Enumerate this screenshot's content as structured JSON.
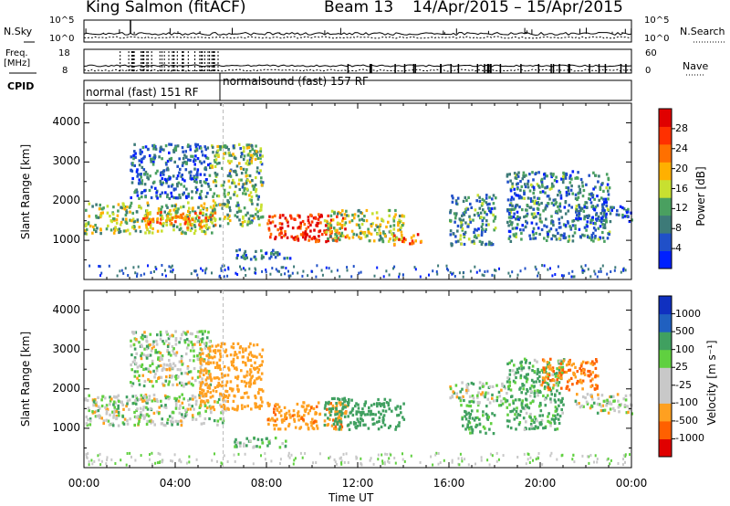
{
  "header": {
    "site": "King Salmon (fitACF)",
    "beam": "Beam 13",
    "dates": "14/Apr/2015 – 15/Apr/2015"
  },
  "aux_panels": {
    "nsky_label": "N.Sky",
    "nsearch_label": "N.Search",
    "noise_ticks": [
      "10^5",
      "10^0"
    ],
    "freq_label": "Freq.",
    "freq_unit": "[MHz]",
    "freq_ticks": [
      "18",
      "8"
    ],
    "nave_label": "Nave",
    "nave_ticks": [
      "60",
      "0"
    ],
    "cpid_label": "CPID",
    "cpid_1": "normal (fast) 151 RF",
    "cpid_2": "normalsound (fast) 157 RF"
  },
  "colors": {
    "power": [
      "#0020ff",
      "#2050c8",
      "#3d7a78",
      "#4aa060",
      "#c8e030",
      "#ffb000",
      "#ff7000",
      "#ff3000",
      "#e00000"
    ],
    "velocity": [
      "#e00000",
      "#ff6000",
      "#ffa020",
      "#c8c8c8",
      "#c8c8c8",
      "#60d040",
      "#40a060",
      "#2060c0",
      "#1030c0"
    ]
  },
  "chart_data": [
    {
      "type": "heatmap",
      "title": "Power",
      "xlabel": "Time UT",
      "ylabel": "Slant Range [km]",
      "x_ticks": [
        "00:00",
        "04:00",
        "08:00",
        "12:00",
        "16:00",
        "20:00",
        "00:00"
      ],
      "xlim": [
        0,
        24
      ],
      "y_ticks": [
        "1000",
        "2000",
        "3000",
        "4000"
      ],
      "ylim": [
        0,
        4500
      ],
      "colorbar": {
        "label": "Power [dB]",
        "ticks": [
          "4",
          "8",
          "12",
          "16",
          "20",
          "24",
          "28"
        ],
        "range": [
          0,
          30
        ]
      },
      "regions": [
        {
          "t0": 0,
          "t1": 5.7,
          "r0": 1200,
          "r1": 2000,
          "value": 14
        },
        {
          "t0": 2.5,
          "t1": 5.8,
          "r0": 1350,
          "r1": 1750,
          "value": 20
        },
        {
          "t0": 2.0,
          "t1": 5.5,
          "r0": 2100,
          "r1": 3500,
          "value": 7
        },
        {
          "t0": 5.5,
          "t1": 7.8,
          "r0": 1400,
          "r1": 3500,
          "value": 12
        },
        {
          "t0": 8.0,
          "t1": 11.5,
          "r0": 1000,
          "r1": 1700,
          "value": 26
        },
        {
          "t0": 10.5,
          "t1": 14.0,
          "r0": 1000,
          "r1": 1800,
          "value": 14
        },
        {
          "t0": 13.5,
          "t1": 14.8,
          "r0": 900,
          "r1": 1200,
          "value": 22
        },
        {
          "t0": 6.5,
          "t1": 9.0,
          "r0": 550,
          "r1": 800,
          "value": 8
        },
        {
          "t0": 16.0,
          "t1": 18.0,
          "r0": 900,
          "r1": 2200,
          "value": 9
        },
        {
          "t0": 18.5,
          "t1": 23.0,
          "r0": 1000,
          "r1": 2800,
          "value": 8
        },
        {
          "t0": 21.5,
          "t1": 24.0,
          "r0": 1500,
          "r1": 1900,
          "value": 6
        }
      ]
    },
    {
      "type": "heatmap",
      "title": "Velocity",
      "xlabel": "Time UT",
      "ylabel": "Slant Range [km]",
      "x_ticks": [
        "00:00",
        "04:00",
        "08:00",
        "12:00",
        "16:00",
        "20:00",
        "00:00"
      ],
      "xlim": [
        0,
        24
      ],
      "y_ticks": [
        "1000",
        "2000",
        "3000",
        "4000"
      ],
      "ylim": [
        0,
        4500
      ],
      "colorbar": {
        "label": "Velocity [m s⁻¹]",
        "ticks": [
          "-1000",
          "-500",
          "-100",
          "-25",
          "25",
          "100",
          "500",
          "1000"
        ],
        "range": [
          -1200,
          1200
        ]
      },
      "regions": [
        {
          "t0": 0,
          "t1": 6.2,
          "r0": 1100,
          "r1": 1900,
          "value": 0
        },
        {
          "t0": 2.0,
          "t1": 5.5,
          "r0": 2100,
          "r1": 3500,
          "value": 0
        },
        {
          "t0": 5.0,
          "t1": 7.8,
          "r0": 1500,
          "r1": 3200,
          "value": -300
        },
        {
          "t0": 8.0,
          "t1": 11.5,
          "r0": 1000,
          "r1": 1700,
          "value": -400
        },
        {
          "t0": 10.5,
          "t1": 14.0,
          "r0": 1000,
          "r1": 1800,
          "value": 300
        },
        {
          "t0": 6.5,
          "t1": 9.0,
          "r0": 550,
          "r1": 800,
          "value": 80
        },
        {
          "t0": 16.0,
          "t1": 18.5,
          "r0": 1600,
          "r1": 2200,
          "value": 0
        },
        {
          "t0": 16.5,
          "t1": 18.0,
          "r0": 900,
          "r1": 1500,
          "value": 200
        },
        {
          "t0": 18.5,
          "t1": 21.0,
          "r0": 1000,
          "r1": 2800,
          "value": 150
        },
        {
          "t0": 20.0,
          "t1": 22.5,
          "r0": 2000,
          "r1": 2800,
          "value": -500
        },
        {
          "t0": 21.5,
          "t1": 24.0,
          "r0": 1400,
          "r1": 1900,
          "value": 0
        }
      ]
    }
  ]
}
